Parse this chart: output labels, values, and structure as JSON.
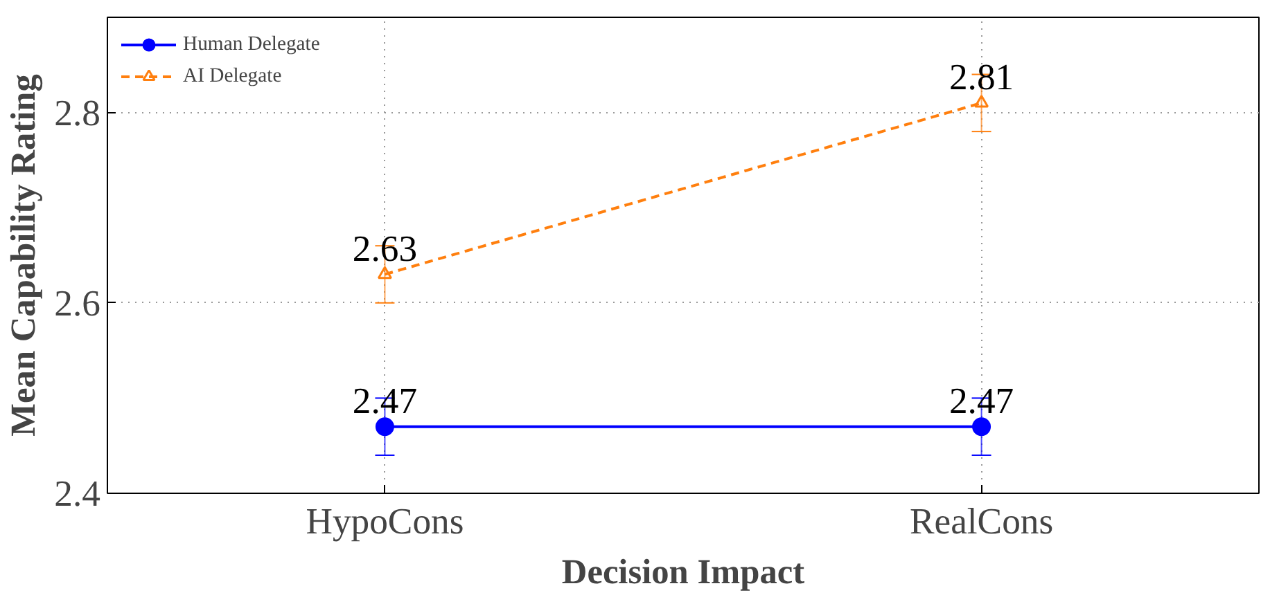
{
  "chart_data": {
    "type": "line",
    "xlabel": "Decision Impact",
    "ylabel": "Mean Capability Rating",
    "categories": [
      "HypoCons",
      "RealCons"
    ],
    "series": [
      {
        "name": "Human Delegate",
        "color": "#0000ff",
        "values": [
          2.47,
          2.47
        ],
        "errors": [
          0.03,
          0.03
        ],
        "marker": "circle",
        "line_style": "solid"
      },
      {
        "name": "AI Delegate",
        "color": "#ff7f0e",
        "values": [
          2.63,
          2.81
        ],
        "errors": [
          0.03,
          0.03
        ],
        "marker": "triangle",
        "line_style": "dashed"
      }
    ],
    "ylim": [
      2.4,
      2.9
    ],
    "yticks": [
      2.4,
      2.6,
      2.8
    ],
    "grid": true,
    "legend": "top left",
    "data_labels": true
  }
}
